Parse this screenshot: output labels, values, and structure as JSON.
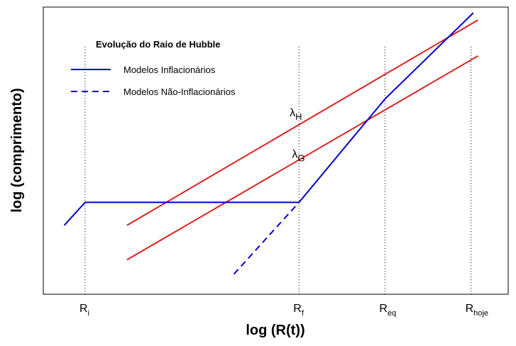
{
  "chart_data": {
    "type": "line",
    "title": "Evolução do Raio de Hubble",
    "xlabel": "log (R(t))",
    "ylabel": "log (comprimento)",
    "xlim": [
      0,
      100
    ],
    "ylim": [
      0,
      100
    ],
    "grid": false,
    "legend_position": "top-left",
    "x_ticks": [
      {
        "base": "R",
        "sub": "i",
        "x": 9
      },
      {
        "base": "R",
        "sub": "f",
        "x": 55
      },
      {
        "base": "R",
        "sub": "eq",
        "x": 73.5
      },
      {
        "base": "R",
        "sub": "hoje",
        "x": 92
      }
    ],
    "legend": [
      {
        "label": "Modelos Inflacionários",
        "style": "solid",
        "color": "#0000cc"
      },
      {
        "label": "Modelos Não-Inflacionários",
        "style": "dashed",
        "color": "#0000cc"
      }
    ],
    "series": [
      {
        "label_base": "λ",
        "label_sub": "H",
        "color": "#dd2222",
        "style": "solid",
        "points": [
          [
            18,
            24
          ],
          [
            93.5,
            95.5
          ]
        ],
        "label_at": [
          53,
          62
        ]
      },
      {
        "label_base": "λ",
        "label_sub": "G",
        "color": "#dd2222",
        "style": "solid",
        "points": [
          [
            18,
            12
          ],
          [
            93.5,
            83
          ]
        ],
        "label_at": [
          53.5,
          47.5
        ]
      },
      {
        "color": "#0000cc",
        "style": "solid",
        "points": [
          [
            4.5,
            24
          ],
          [
            9,
            32
          ],
          [
            55,
            32
          ],
          [
            73.5,
            68
          ],
          [
            92.5,
            98
          ]
        ]
      },
      {
        "color": "#0000cc",
        "style": "dashed",
        "points": [
          [
            41,
            7
          ],
          [
            55,
            32
          ]
        ]
      }
    ],
    "reference_lines": [
      9,
      55,
      73.5,
      92
    ]
  }
}
